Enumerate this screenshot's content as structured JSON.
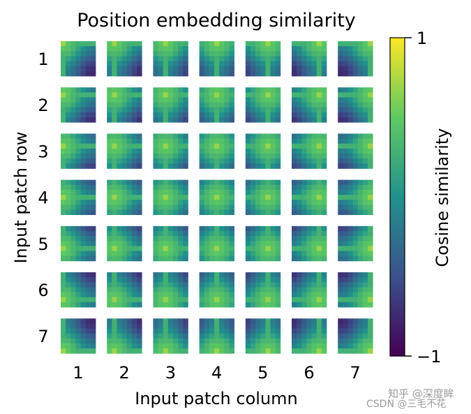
{
  "chart_data": {
    "type": "heatmap",
    "title": "Position embedding similarity",
    "xlabel": "Input patch column",
    "ylabel": "Input patch row",
    "grid_rows": 7,
    "grid_cols": 7,
    "cells_per_patch": 7,
    "row_tick_labels": [
      "1",
      "2",
      "3",
      "4",
      "5",
      "6",
      "7"
    ],
    "col_tick_labels": [
      "1",
      "2",
      "3",
      "4",
      "5",
      "6",
      "7"
    ],
    "value_range": [
      -1,
      1
    ],
    "colorbar": {
      "label": "Cosine similarity",
      "ticks": [
        1,
        -1
      ],
      "tick_labels": [
        "1",
        "−1"
      ],
      "colormap": "viridis",
      "colors": [
        "#440154",
        "#3b528b",
        "#21918c",
        "#5ec962",
        "#fde725"
      ]
    }
  },
  "watermark": {
    "primary": "知乎 @深度眸",
    "secondary": "CSDN @三毛不花"
  }
}
